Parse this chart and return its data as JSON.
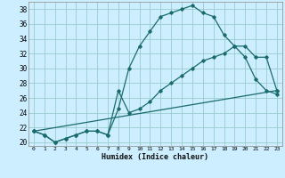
{
  "xlabel": "Humidex (Indice chaleur)",
  "background_color": "#cceeff",
  "grid_color": "#99cccc",
  "line_color": "#1a6b6b",
  "xlim": [
    -0.5,
    23.5
  ],
  "ylim": [
    19.5,
    39.0
  ],
  "yticks": [
    20,
    22,
    24,
    26,
    28,
    30,
    32,
    34,
    36,
    38
  ],
  "xticks": [
    0,
    1,
    2,
    3,
    4,
    5,
    6,
    7,
    8,
    9,
    10,
    11,
    12,
    13,
    14,
    15,
    16,
    17,
    18,
    19,
    20,
    21,
    22,
    23
  ],
  "line1_x": [
    0,
    1,
    2,
    3,
    4,
    5,
    6,
    7,
    8,
    9,
    10,
    11,
    12,
    13,
    14,
    15,
    16,
    17,
    18,
    19,
    20,
    21,
    22,
    23
  ],
  "line1_y": [
    21.5,
    21.0,
    20.0,
    20.5,
    21.0,
    21.5,
    21.5,
    21.0,
    24.5,
    30.0,
    33.0,
    35.0,
    37.0,
    37.5,
    38.0,
    38.5,
    37.5,
    37.0,
    34.5,
    33.0,
    31.5,
    28.5,
    27.0,
    26.5
  ],
  "line2_x": [
    0,
    1,
    2,
    3,
    4,
    5,
    6,
    7,
    8,
    9,
    10,
    11,
    12,
    13,
    14,
    15,
    16,
    17,
    18,
    19,
    20,
    21,
    22,
    23
  ],
  "line2_y": [
    21.5,
    21.0,
    20.0,
    20.5,
    21.0,
    21.5,
    21.5,
    21.0,
    27.0,
    24.0,
    24.5,
    25.5,
    27.0,
    28.0,
    29.0,
    30.0,
    31.0,
    31.5,
    32.0,
    33.0,
    33.0,
    31.5,
    31.5,
    27.0
  ],
  "line3_x": [
    0,
    23
  ],
  "line3_y": [
    21.5,
    27.0
  ]
}
